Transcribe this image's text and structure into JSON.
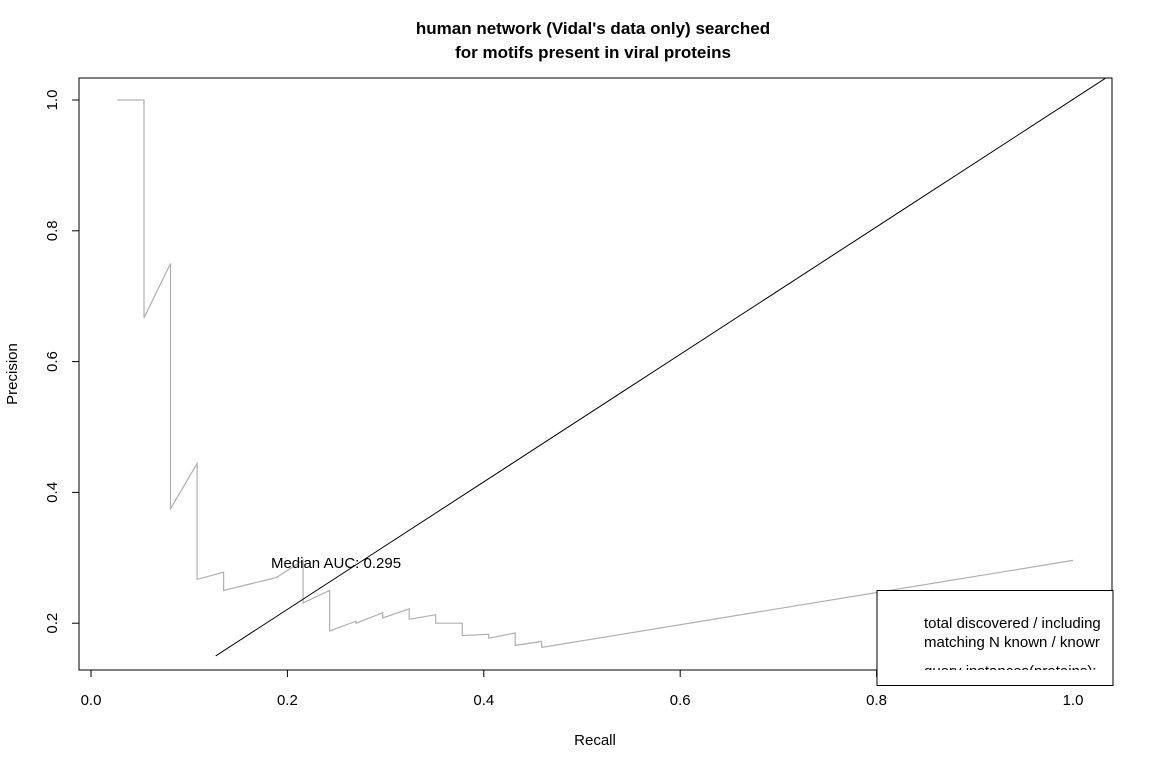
{
  "chart_data": {
    "type": "line",
    "title_line1": "human network (Vidal's data only) searched",
    "title_line2": "for motifs present in viral proteins",
    "xlabel": "Recall",
    "ylabel": "Precision",
    "xlim": [
      0.0,
      1.0
    ],
    "ylim": [
      0.15,
      1.0
    ],
    "x_ticks": [
      0.0,
      0.2,
      0.4,
      0.6,
      0.8,
      1.0
    ],
    "x_tick_labels": [
      "0.0",
      "0.2",
      "0.4",
      "0.6",
      "0.8",
      "1.0"
    ],
    "y_ticks": [
      0.2,
      0.4,
      0.6,
      0.8,
      1.0
    ],
    "y_tick_labels": [
      "0.2",
      "0.4",
      "0.6",
      "0.8",
      "1.0"
    ],
    "annotation": "Median AUC: 0.295",
    "grid": false,
    "series": [
      {
        "color": "#b0b0b0",
        "x": [
          0.027,
          0.054,
          0.054,
          0.081,
          0.081,
          0.108,
          0.108,
          0.135,
          0.135,
          0.162,
          0.189,
          0.216,
          0.216,
          0.243,
          0.243,
          0.27,
          0.27,
          0.297,
          0.297,
          0.324,
          0.324,
          0.351,
          0.351,
          0.378,
          0.378,
          0.405,
          0.405,
          0.432,
          0.432,
          0.459,
          0.459,
          1.0
        ],
        "y": [
          1.0,
          1.0,
          0.667,
          0.75,
          0.375,
          0.444,
          0.267,
          0.278,
          0.25,
          0.26,
          0.27,
          0.296,
          0.231,
          0.25,
          0.188,
          0.203,
          0.2,
          0.216,
          0.208,
          0.222,
          0.206,
          0.213,
          0.2,
          0.2,
          0.181,
          0.183,
          0.177,
          0.185,
          0.166,
          0.172,
          0.163,
          0.296
        ]
      },
      {
        "color": "#000000",
        "x": [
          0.127,
          1.04
        ],
        "y": [
          0.15,
          1.04
        ]
      }
    ],
    "legend": {
      "placement": "bottom-right",
      "lines": [
        "total discovered / including",
        "matching N known / knowr",
        "query instances(proteins):"
      ]
    }
  }
}
